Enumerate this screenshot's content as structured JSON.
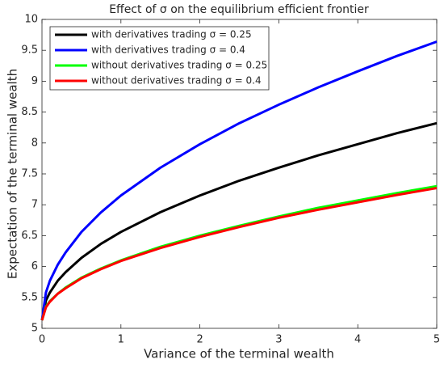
{
  "chart_data": {
    "type": "line",
    "title": "Effect of σ on the equilibrium efficient frontier",
    "xlabel": "Variance of the terminal wealth",
    "ylabel": "Expectation of the terminal wealth",
    "x": [
      0,
      0.05,
      0.1,
      0.2,
      0.3,
      0.5,
      0.75,
      1,
      1.5,
      2,
      2.5,
      3,
      3.5,
      4,
      4.5,
      5
    ],
    "series": [
      {
        "name": "with derivatives trading σ = 0.25",
        "color": "#000000",
        "values": [
          5.13,
          5.45,
          5.58,
          5.77,
          5.91,
          6.14,
          6.37,
          6.56,
          6.88,
          7.15,
          7.39,
          7.6,
          7.8,
          7.98,
          8.16,
          8.32
        ]
      },
      {
        "name": "with derivatives trading σ = 0.4",
        "color": "#0000ff",
        "values": [
          5.13,
          5.58,
          5.77,
          6.03,
          6.23,
          6.56,
          6.88,
          7.15,
          7.6,
          7.98,
          8.32,
          8.62,
          8.9,
          9.16,
          9.41,
          9.64
        ]
      },
      {
        "name": "without derivatives trading σ = 0.25",
        "color": "#00ff00",
        "values": [
          5.13,
          5.35,
          5.44,
          5.56,
          5.66,
          5.82,
          5.97,
          6.1,
          6.32,
          6.5,
          6.66,
          6.81,
          6.95,
          7.07,
          7.19,
          7.3
        ]
      },
      {
        "name": "without derivatives trading σ = 0.4",
        "color": "#ff0000",
        "values": [
          5.13,
          5.34,
          5.43,
          5.56,
          5.65,
          5.81,
          5.96,
          6.09,
          6.3,
          6.48,
          6.64,
          6.79,
          6.92,
          7.04,
          7.16,
          7.27
        ]
      }
    ],
    "xlim": [
      0,
      5
    ],
    "xticks": [
      0,
      1,
      2,
      3,
      4,
      5
    ],
    "ylim": [
      5,
      10
    ],
    "yticks": [
      5,
      5.5,
      6,
      6.5,
      7,
      7.5,
      8,
      8.5,
      9,
      9.5,
      10
    ],
    "legend": "upper left",
    "grid": false
  }
}
